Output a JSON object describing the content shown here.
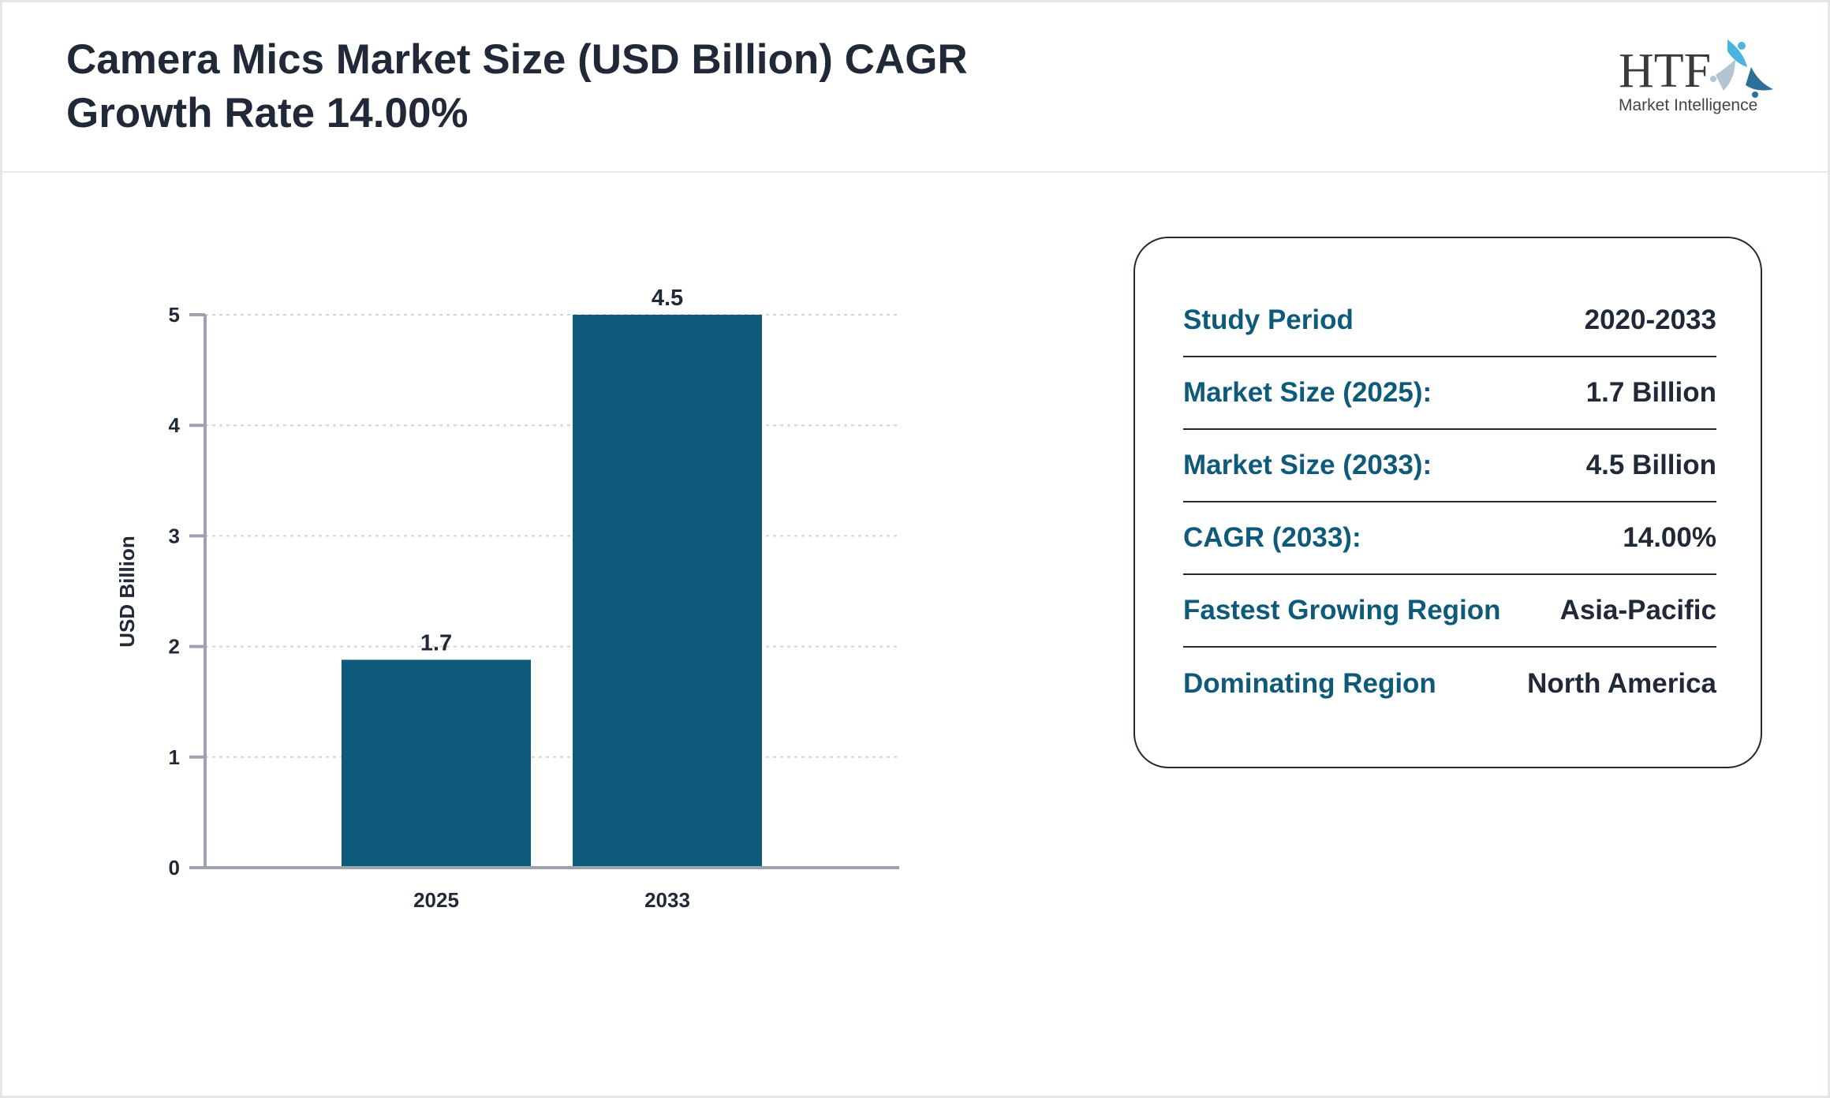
{
  "header": {
    "title": "Camera Mics Market Size (USD Billion) CAGR Growth Rate 14.00%",
    "logo_text": "HTF",
    "logo_subtext": "Market Intelligence"
  },
  "chart_data": {
    "type": "bar",
    "categories": [
      "2025",
      "2033"
    ],
    "values": [
      1.7,
      4.5
    ],
    "data_labels": [
      "1.7",
      "4.5"
    ],
    "bar_heights": [
      1.88,
      5.0
    ],
    "ylabel": "USD Billion",
    "xlabel": "",
    "ylim": [
      0,
      5
    ],
    "yticks": [
      "0",
      "1",
      "2",
      "3",
      "4",
      "5"
    ],
    "grid": true,
    "bar_color": "#0e5a7a"
  },
  "info": {
    "rows": [
      {
        "label": "Study Period",
        "value": "2020-2033"
      },
      {
        "label": "Market Size (2025):",
        "value": "1.7 Billion"
      },
      {
        "label": "Market Size (2033):",
        "value": "4.5 Billion"
      },
      {
        "label": "CAGR (2033):",
        "value": "14.00%"
      },
      {
        "label": "Fastest Growing Region",
        "value": "Asia-Pacific"
      },
      {
        "label": "Dominating Region",
        "value": "North America"
      }
    ]
  }
}
